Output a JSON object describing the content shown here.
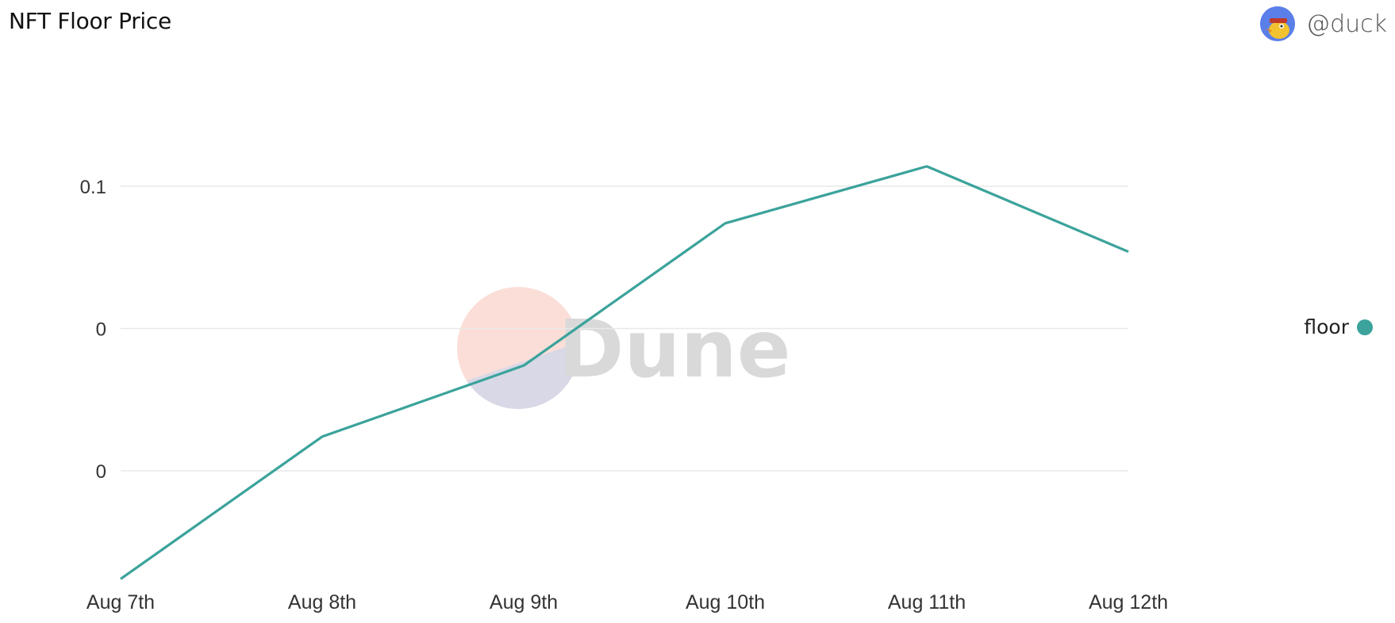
{
  "header": {
    "title": "NFT Floor Price",
    "author": "@duck",
    "avatar_icon": "duck-avatar-icon"
  },
  "watermark": {
    "text": "Dune"
  },
  "legend": {
    "label": "floor"
  },
  "chart_data": {
    "type": "line",
    "title": "NFT Floor Price",
    "xlabel": "",
    "ylabel": "",
    "categories": [
      "Aug 7th",
      "Aug 8th",
      "Aug 9th",
      "Aug 10th",
      "Aug 11th",
      "Aug 12th"
    ],
    "y_tick_labels": [
      "0",
      "0",
      "0.1"
    ],
    "y_tick_values": [
      0.0,
      0.05,
      0.1
    ],
    "ylim": [
      -0.038,
      0.1
    ],
    "series": [
      {
        "name": "floor",
        "color": "#3ba39b",
        "values": [
          -0.038,
          0.012,
          0.037,
          0.087,
          0.107,
          0.077
        ]
      }
    ],
    "grid": true,
    "legend_position": "right"
  }
}
